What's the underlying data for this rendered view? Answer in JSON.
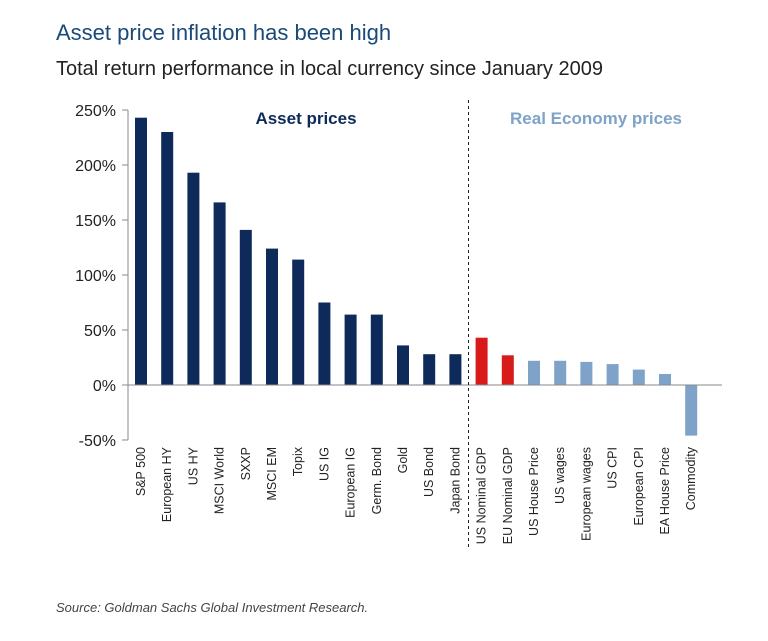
{
  "title": "Asset price inflation has been high",
  "subtitle": "Total return performance in local currency since January 2009",
  "source": "Source: Goldman Sachs Global Investment Research.",
  "colors": {
    "asset": "#0e2a5a",
    "nominal_gdp": "#d91a1a",
    "real_economy": "#7ea2c8",
    "asset_label": "#0e2a5a",
    "real_label": "#7ea2c8"
  },
  "chart_data": {
    "type": "bar",
    "title": "Asset price inflation has been high",
    "subtitle": "Total return performance in local currency since January 2009",
    "ylim": [
      -50,
      250
    ],
    "yticks": [
      -50,
      0,
      50,
      100,
      150,
      200,
      250
    ],
    "ytick_labels": [
      "-50%",
      "0%",
      "50%",
      "100%",
      "150%",
      "200%",
      "250%"
    ],
    "grid": false,
    "categories": [
      "S&P 500",
      "European HY",
      "US HY",
      "MSCI World",
      "SXXP",
      "MSCI EM",
      "Topix",
      "US IG",
      "European IG",
      "Germ. Bond",
      "Gold",
      "US Bond",
      "Japan Bond",
      "US Nominal GDP",
      "EU Nominal GDP",
      "US House Price",
      "US wages",
      "European wages",
      "US CPI",
      "European CPI",
      "EA House Price",
      "Commodity"
    ],
    "values": [
      243,
      230,
      193,
      166,
      141,
      124,
      114,
      75,
      64,
      64,
      36,
      28,
      28,
      43,
      27,
      22,
      22,
      21,
      19,
      14,
      10,
      -46
    ],
    "groups": [
      "asset",
      "asset",
      "asset",
      "asset",
      "asset",
      "asset",
      "asset",
      "asset",
      "asset",
      "asset",
      "asset",
      "asset",
      "asset",
      "nominal_gdp",
      "nominal_gdp",
      "real_economy",
      "real_economy",
      "real_economy",
      "real_economy",
      "real_economy",
      "real_economy",
      "real_economy"
    ],
    "group_labels": {
      "asset": "Asset prices",
      "real": "Real Economy prices"
    }
  }
}
